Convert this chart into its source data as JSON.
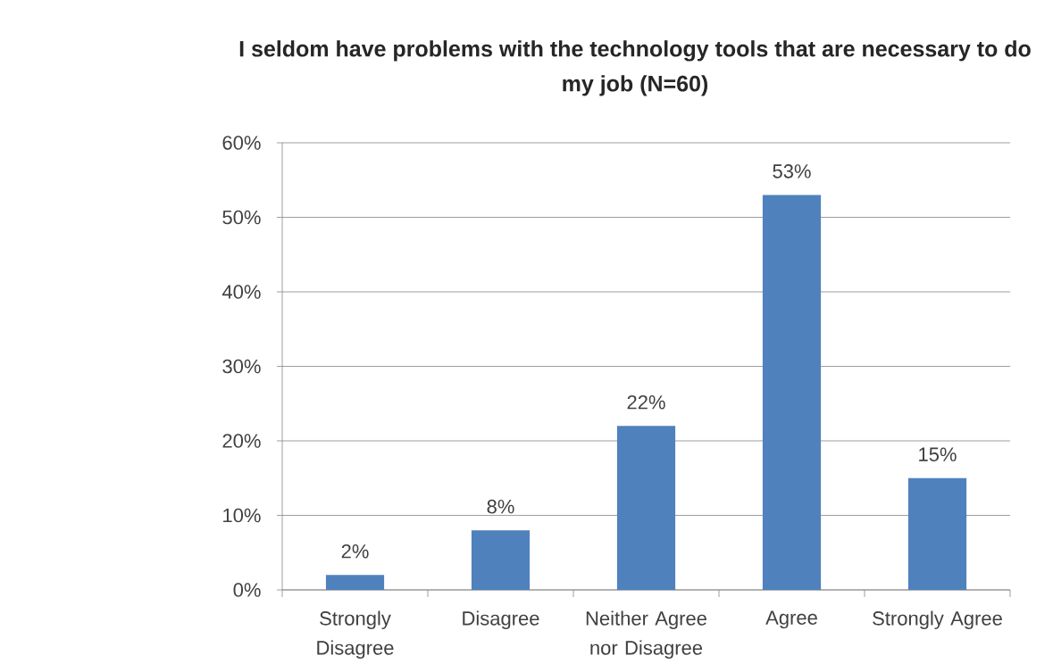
{
  "chart_data": {
    "type": "bar",
    "title": "I seldom have problems with the technology tools that are necessary to do my job (N=60)",
    "categories": [
      "Strongly Disagree",
      "Disagree",
      "Neither Agree nor Disagree",
      "Agree",
      "Strongly Agree"
    ],
    "values": [
      2,
      8,
      22,
      53,
      15
    ],
    "color": "#4f81bd",
    "value_labels": [
      "2%",
      "8%",
      "22%",
      "53%",
      "15%"
    ],
    "ylim": [
      0,
      60
    ],
    "yticks": [
      {
        "value": 0,
        "label": "0%"
      },
      {
        "value": 10,
        "label": "10%"
      },
      {
        "value": 20,
        "label": "20%"
      },
      {
        "value": 30,
        "label": "30%"
      },
      {
        "value": 40,
        "label": "40%"
      },
      {
        "value": 50,
        "label": "50%"
      },
      {
        "value": 60,
        "label": "60%"
      }
    ],
    "grid": "y"
  }
}
